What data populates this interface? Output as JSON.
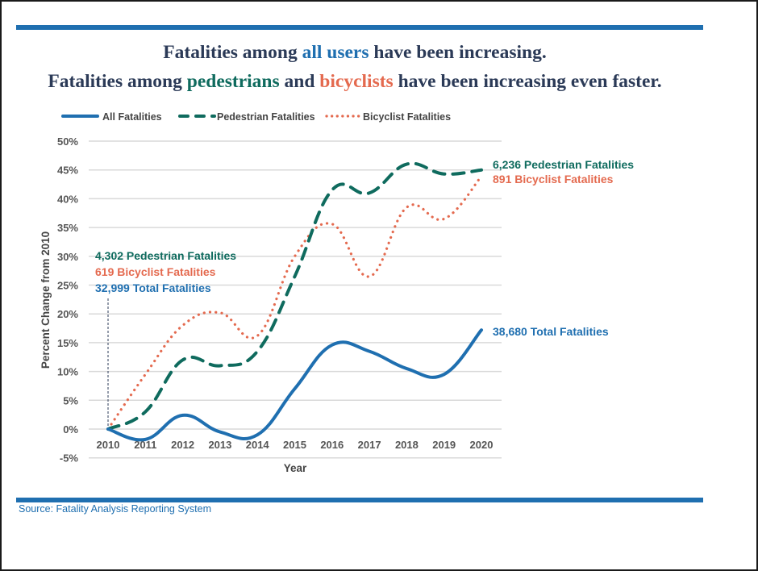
{
  "header": {
    "line1": {
      "pre": "Fatalities among ",
      "highlight": "all users",
      "post": " have been increasing."
    },
    "line2": {
      "pre": "Fatalities among ",
      "highlight1": "pedestrians",
      "mid": " and ",
      "highlight2": "bicyclists",
      "post": " have been increasing even faster."
    }
  },
  "colors": {
    "all": "#1f6fb0",
    "pedestrian": "#0f6b5e",
    "bicyclist": "#e46a4f",
    "rule": "#1f6fb0",
    "grid": "#d9d9d9",
    "headline": "#2b3a57"
  },
  "footer": {
    "source": "Source: Fatality Analysis Reporting System"
  },
  "chart_data": {
    "type": "line",
    "title": "Fatalities among all users have been increasing. Fatalities among pedestrians and bicyclists have been increasing even faster.",
    "xlabel": "Year",
    "ylabel": "Percent Change from 2010",
    "x": [
      "2010",
      "2011",
      "2012",
      "2013",
      "2014",
      "2015",
      "2016",
      "2017",
      "2018",
      "2019",
      "2020"
    ],
    "ylim": [
      -5,
      50
    ],
    "yticks": [
      -5,
      0,
      5,
      10,
      15,
      20,
      25,
      30,
      35,
      40,
      45,
      50
    ],
    "ytick_labels": [
      "-5%",
      "0%",
      "5%",
      "10%",
      "15%",
      "20%",
      "25%",
      "30%",
      "35%",
      "40%",
      "45%",
      "50%"
    ],
    "grid": true,
    "legend_position": "top-left",
    "series": [
      {
        "key": "all",
        "name": "All Fatalities",
        "style": "solid",
        "values": [
          0,
          -1.8,
          2.4,
          -0.5,
          -1.0,
          7.0,
          14.6,
          13.5,
          10.5,
          9.5,
          17.2
        ]
      },
      {
        "key": "pedestrian",
        "name": "Pedestrian Fatalities",
        "style": "dashed",
        "values": [
          0,
          3.0,
          12.0,
          11.0,
          13.5,
          26.5,
          41.5,
          41.0,
          46.0,
          44.3,
          45.0
        ]
      },
      {
        "key": "bicyclist",
        "name": "Bicyclist Fatalities",
        "style": "dotted",
        "values": [
          0,
          9.5,
          18.0,
          20.2,
          16.2,
          30.0,
          35.6,
          26.5,
          38.5,
          36.5,
          43.9
        ]
      }
    ],
    "annotations": {
      "start": [
        {
          "key": "pedestrian",
          "text": "4,302 Pedestrian Fatalities"
        },
        {
          "key": "bicyclist",
          "text": "619 Bicyclist Fatalities"
        },
        {
          "key": "all",
          "text": "32,999 Total Fatalities"
        }
      ],
      "end": [
        {
          "key": "pedestrian",
          "text": "6,236 Pedestrian Fatalities"
        },
        {
          "key": "bicyclist",
          "text": "891 Bicyclist Fatalities"
        },
        {
          "key": "all",
          "text": "38,680 Total Fatalities"
        }
      ]
    }
  }
}
